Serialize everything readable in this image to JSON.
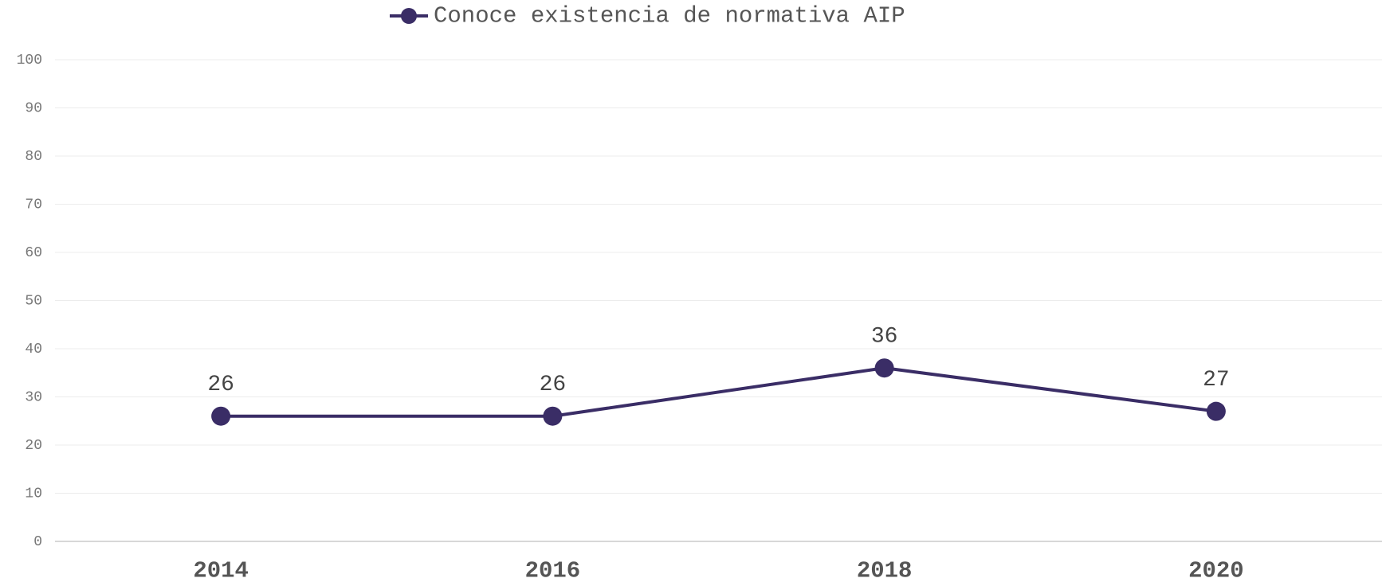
{
  "chart_data": {
    "type": "line",
    "categories": [
      "2014",
      "2016",
      "2018",
      "2020"
    ],
    "series": [
      {
        "name": "Conoce existencia de normativa AIP",
        "color": "#3a2d66",
        "values": [
          26,
          26,
          36,
          27
        ]
      }
    ],
    "ylim": [
      0,
      100
    ],
    "yticks": [
      0,
      10,
      20,
      30,
      40,
      50,
      60,
      70,
      80,
      90,
      100
    ],
    "grid": true,
    "legend": "top"
  }
}
